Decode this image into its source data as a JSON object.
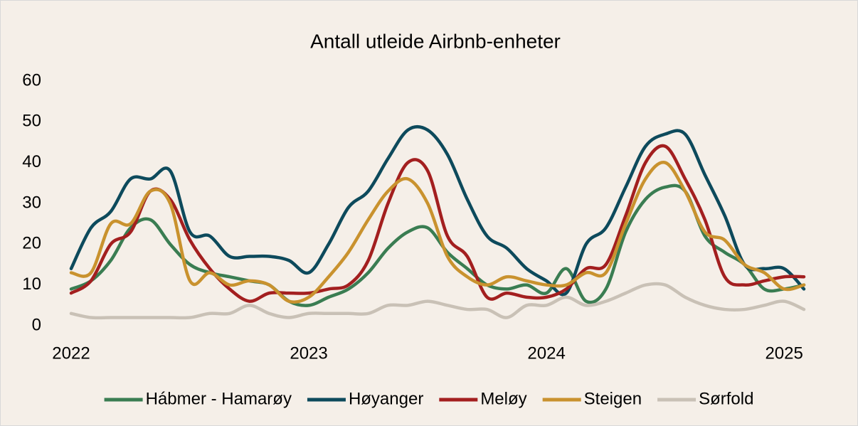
{
  "chart_data": {
    "type": "line",
    "title": "Antall utleide Airbnb-enheter",
    "categories": [
      "2022",
      null,
      null,
      null,
      null,
      null,
      null,
      null,
      null,
      null,
      null,
      null,
      "2023",
      null,
      null,
      null,
      null,
      null,
      null,
      null,
      null,
      null,
      null,
      null,
      "2024",
      null,
      null,
      null,
      null,
      null,
      null,
      null,
      null,
      null,
      null,
      null,
      "2025",
      null
    ],
    "series": [
      {
        "name": "Hábmer - Hamarøy",
        "color": "#3a7d52",
        "values": [
          9,
          11,
          16,
          24,
          26,
          20,
          15,
          13,
          12,
          11,
          10,
          6,
          5,
          7,
          9,
          13,
          19,
          23,
          24,
          18,
          14,
          10,
          9,
          10,
          8,
          14,
          6,
          9,
          23,
          31,
          34,
          33,
          22,
          18,
          15,
          9,
          9,
          10
        ]
      },
      {
        "name": "Høyanger",
        "color": "#0d4a5c",
        "values": [
          14,
          24,
          28,
          36,
          36,
          38,
          23,
          22,
          17,
          17,
          17,
          16,
          13,
          20,
          29,
          33,
          41,
          48,
          48,
          42,
          31,
          22,
          19,
          14,
          11,
          8,
          20,
          24,
          34,
          44,
          47,
          47,
          37,
          27,
          15,
          14,
          14,
          9
        ]
      },
      {
        "name": "Meløy",
        "color": "#a31f1f",
        "values": [
          8,
          11,
          20,
          23,
          33,
          31,
          21,
          14,
          9,
          6,
          8,
          8,
          8,
          9,
          10,
          16,
          30,
          40,
          38,
          22,
          17,
          7,
          8,
          7,
          7,
          9,
          14,
          15,
          27,
          40,
          44,
          36,
          26,
          12,
          10,
          11,
          12,
          12
        ]
      },
      {
        "name": "Steigen",
        "color": "#c9922e",
        "values": [
          13,
          13,
          25,
          25,
          33,
          30,
          11,
          13,
          10,
          11,
          10,
          6,
          7,
          12,
          18,
          26,
          33,
          36,
          30,
          17,
          12,
          10,
          12,
          11,
          10,
          10,
          13,
          13,
          25,
          36,
          40,
          33,
          23,
          21,
          15,
          13,
          9,
          10
        ]
      },
      {
        "name": "Sørfold",
        "color": "#c9c1b6",
        "values": [
          3,
          2,
          2,
          2,
          2,
          2,
          2,
          3,
          3,
          5,
          3,
          2,
          3,
          3,
          3,
          3,
          5,
          5,
          6,
          5,
          4,
          4,
          2,
          5,
          5,
          7,
          5,
          6,
          8,
          10,
          10,
          7,
          5,
          4,
          4,
          5,
          6,
          4
        ]
      }
    ],
    "ylim": [
      0,
      60
    ],
    "yticks": [
      0,
      10,
      20,
      30,
      40,
      50,
      60
    ],
    "grid": false,
    "legend": "bottom"
  }
}
